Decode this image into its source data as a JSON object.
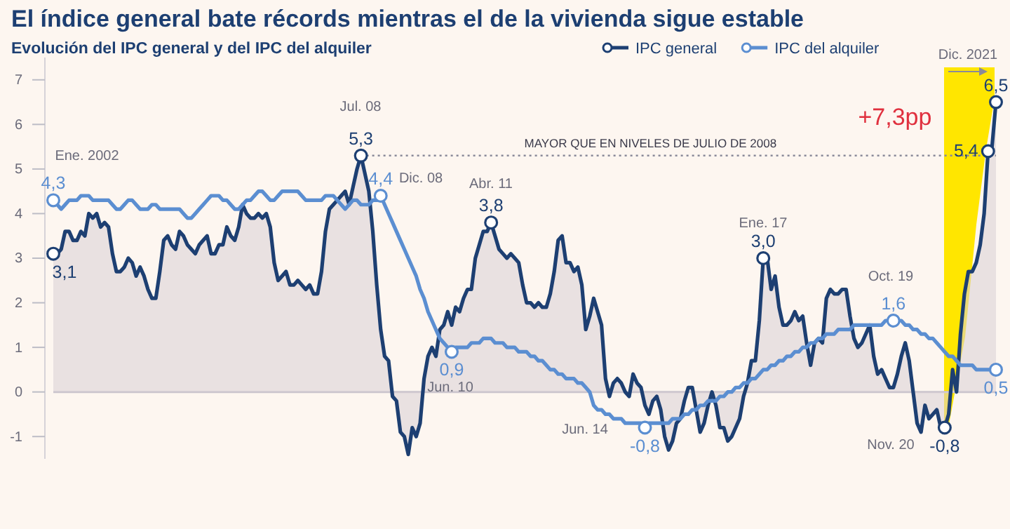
{
  "chart_data": {
    "type": "line",
    "title": "El índice general bate récords mientras el de la vivienda sigue estable",
    "subtitle": "Evolución del IPC general y del IPC del alquiler",
    "categories": [
      null,
      null,
      null,
      null,
      null,
      null,
      null,
      null,
      null,
      null,
      null,
      null,
      null,
      null,
      null,
      null,
      null,
      null,
      null,
      null,
      null,
      null,
      null,
      null,
      null,
      null,
      null,
      null,
      null,
      null,
      null,
      null,
      null,
      null,
      null,
      null,
      null,
      null,
      null,
      null,
      null,
      null,
      null,
      null,
      null,
      null,
      null,
      null,
      null,
      null,
      null,
      null,
      null,
      null,
      null,
      null,
      null,
      null,
      null,
      null,
      null,
      null,
      null,
      null,
      null,
      null,
      null,
      null,
      null,
      null,
      null,
      null,
      null,
      null,
      null,
      null,
      null,
      null,
      null,
      null,
      null,
      null,
      null,
      null,
      null,
      null,
      null,
      null,
      null,
      null,
      null,
      null,
      null,
      null,
      null,
      null,
      null,
      null,
      null,
      null,
      null,
      null,
      null,
      null,
      null,
      null,
      null,
      null,
      null,
      null,
      null,
      null,
      null,
      null,
      null,
      null,
      null,
      null,
      null,
      null,
      null,
      null,
      null,
      null,
      null,
      null,
      null,
      null,
      null,
      null,
      null,
      null,
      null,
      null,
      null,
      null,
      null,
      null,
      null,
      null,
      null,
      null,
      null,
      null,
      null,
      null,
      null,
      null,
      null,
      null,
      null,
      null,
      null,
      null,
      null,
      null,
      null,
      null,
      null,
      null,
      null,
      null,
      null,
      null,
      null,
      null,
      null,
      null,
      null,
      null,
      null,
      null,
      null,
      null,
      null,
      null,
      null,
      null,
      null,
      null,
      null,
      null,
      null,
      null,
      null,
      null,
      null,
      null,
      null,
      null,
      null,
      null,
      null,
      null,
      null,
      null,
      null,
      null,
      null,
      null,
      null,
      null,
      null,
      null,
      null,
      null,
      null,
      null,
      null,
      null,
      null,
      null,
      null,
      null,
      null,
      null,
      null,
      null,
      null,
      null,
      null,
      null,
      null,
      null,
      null,
      null,
      null,
      null,
      null,
      null,
      null,
      null,
      null,
      null,
      null,
      null,
      null,
      null,
      null,
      null
    ],
    "ylim": [
      -1.5,
      7.5
    ],
    "yticks": [
      -1,
      0,
      1,
      2,
      3,
      4,
      5,
      6,
      7
    ],
    "tick_labels": "y",
    "legend": "top right",
    "series": [
      {
        "name": "IPC general",
        "type": "area",
        "color": "#1d3f72",
        "values": [
          3.1,
          3.1,
          3.2,
          3.6,
          3.6,
          3.4,
          3.4,
          3.6,
          3.5,
          4.0,
          3.9,
          4.0,
          3.7,
          3.8,
          3.7,
          3.1,
          2.7,
          2.7,
          2.8,
          3.0,
          2.9,
          2.6,
          2.8,
          2.6,
          2.3,
          2.1,
          2.1,
          2.7,
          3.4,
          3.5,
          3.3,
          3.2,
          3.6,
          3.5,
          3.3,
          3.2,
          3.1,
          3.3,
          3.4,
          3.5,
          3.1,
          3.1,
          3.3,
          3.3,
          3.7,
          3.5,
          3.4,
          3.7,
          4.2,
          4.0,
          3.9,
          3.9,
          4.0,
          3.9,
          4.0,
          3.7,
          2.9,
          2.5,
          2.6,
          2.7,
          2.4,
          2.4,
          2.5,
          2.4,
          2.3,
          2.4,
          2.2,
          2.2,
          2.7,
          3.6,
          4.1,
          4.2,
          4.3,
          4.4,
          4.5,
          4.2,
          4.6,
          5.0,
          5.3,
          4.9,
          4.5,
          3.6,
          2.4,
          1.4,
          0.8,
          0.7,
          -0.1,
          -0.2,
          -0.9,
          -1.0,
          -1.4,
          -0.8,
          -1.0,
          -0.7,
          0.3,
          0.8,
          1.0,
          0.8,
          1.4,
          1.5,
          1.8,
          1.5,
          1.9,
          1.8,
          2.1,
          2.3,
          2.3,
          3.0,
          3.3,
          3.6,
          3.6,
          3.8,
          3.5,
          3.2,
          3.1,
          3.0,
          3.1,
          3.0,
          2.9,
          2.4,
          2.0,
          2.0,
          1.9,
          2.0,
          1.9,
          1.9,
          2.2,
          2.7,
          3.4,
          3.5,
          2.9,
          2.9,
          2.7,
          2.8,
          2.4,
          1.4,
          1.7,
          2.1,
          1.8,
          1.5,
          0.3,
          -0.1,
          0.2,
          0.3,
          0.2,
          0.0,
          -0.1,
          0.4,
          0.2,
          0.1,
          -0.3,
          -0.5,
          -0.2,
          -0.1,
          -0.4,
          -1.0,
          -1.3,
          -1.1,
          -0.7,
          -0.6,
          -0.2,
          0.1,
          0.1,
          -0.4,
          -0.9,
          -0.7,
          -0.3,
          0.0,
          -0.3,
          -0.8,
          -0.8,
          -1.1,
          -1.0,
          -0.8,
          -0.6,
          -0.1,
          0.2,
          0.7,
          0.7,
          1.6,
          3.0,
          3.0,
          2.3,
          2.6,
          1.9,
          1.5,
          1.5,
          1.6,
          1.8,
          1.6,
          1.7,
          1.1,
          0.6,
          1.1,
          1.2,
          1.1,
          2.1,
          2.3,
          2.2,
          2.2,
          2.3,
          2.3,
          1.7,
          1.2,
          1.0,
          1.1,
          1.3,
          1.5,
          0.8,
          0.4,
          0.5,
          0.3,
          0.1,
          0.1,
          0.4,
          0.8,
          1.1,
          0.7,
          0.0,
          -0.7,
          -0.9,
          -0.3,
          -0.6,
          -0.5,
          -0.4,
          -0.8,
          -0.8,
          -0.5,
          0.5,
          0.0,
          1.3,
          2.2,
          2.7,
          2.7,
          2.9,
          3.3,
          4.0,
          5.4,
          5.5,
          6.5
        ],
        "value_labels": [
          "3,1",
          null,
          null,
          null,
          null,
          null,
          null,
          null,
          null,
          null,
          null,
          null,
          null,
          null,
          null,
          null,
          null,
          null,
          null,
          null,
          null,
          null,
          null,
          null,
          null,
          null,
          null,
          null,
          null,
          null,
          null,
          null,
          null,
          null,
          null,
          null,
          null,
          null,
          null,
          null,
          null,
          null,
          null,
          null,
          null,
          null,
          null,
          null,
          null,
          null,
          null,
          null,
          null,
          null,
          null,
          null,
          null,
          null,
          null,
          null,
          null,
          null,
          null,
          null,
          null,
          null,
          null,
          null,
          null,
          null,
          null,
          null,
          null,
          null,
          null,
          null,
          null,
          null,
          "5,3",
          null,
          null,
          null,
          null,
          null,
          null,
          null,
          null,
          null,
          null,
          null,
          null,
          null,
          null,
          null,
          null,
          null,
          null,
          null,
          null,
          null,
          null,
          null,
          null,
          null,
          null,
          null,
          null,
          null,
          null,
          null,
          null,
          "3,8",
          null,
          null,
          null,
          null,
          null,
          null,
          null,
          null,
          null,
          null,
          null,
          null,
          null,
          null,
          null,
          null,
          null,
          null,
          null,
          null,
          null,
          null,
          null,
          null,
          null,
          null,
          null,
          null,
          null,
          null,
          null,
          null,
          null,
          null,
          null,
          null,
          null,
          null,
          null,
          null,
          null,
          null,
          null,
          null,
          null,
          null,
          null,
          null,
          null,
          null,
          null,
          null,
          null,
          null,
          null,
          null,
          null,
          null,
          null,
          null,
          null,
          null,
          null,
          null,
          null,
          null,
          null,
          null,
          "3,0",
          null,
          null,
          null,
          null,
          null,
          null,
          null,
          null,
          null,
          null,
          null,
          null,
          null,
          null,
          null,
          null,
          null,
          null,
          null,
          null,
          null,
          null,
          null,
          null,
          null,
          null,
          null,
          null,
          null,
          null,
          null,
          null,
          null,
          null,
          null,
          null,
          null,
          null,
          null,
          null,
          null,
          null,
          null,
          null,
          null,
          "-0,8",
          null,
          null,
          null,
          null,
          null,
          null,
          null,
          null,
          null,
          null,
          "5,4",
          null,
          "6,5"
        ]
      },
      {
        "name": "IPC del alquiler",
        "color": "#5b8ed1",
        "values": [
          4.3,
          4.2,
          4.1,
          4.2,
          4.3,
          4.3,
          4.3,
          4.4,
          4.4,
          4.4,
          4.3,
          4.3,
          4.3,
          4.3,
          4.3,
          4.2,
          4.1,
          4.1,
          4.2,
          4.3,
          4.3,
          4.2,
          4.1,
          4.1,
          4.1,
          4.2,
          4.2,
          4.1,
          4.1,
          4.1,
          4.1,
          4.1,
          4.1,
          4.0,
          3.9,
          3.9,
          4.0,
          4.1,
          4.2,
          4.3,
          4.4,
          4.4,
          4.4,
          4.3,
          4.3,
          4.2,
          4.1,
          4.1,
          4.2,
          4.3,
          4.3,
          4.4,
          4.5,
          4.5,
          4.4,
          4.3,
          4.3,
          4.4,
          4.5,
          4.5,
          4.5,
          4.5,
          4.5,
          4.4,
          4.3,
          4.3,
          4.3,
          4.3,
          4.3,
          4.4,
          4.4,
          4.4,
          4.3,
          4.2,
          4.1,
          4.2,
          4.3,
          4.3,
          4.2,
          4.2,
          4.2,
          4.3,
          4.3,
          4.4,
          4.2,
          4.0,
          3.8,
          3.6,
          3.4,
          3.2,
          3.0,
          2.8,
          2.6,
          2.3,
          2.1,
          1.8,
          1.6,
          1.4,
          1.2,
          1.1,
          1.0,
          0.9,
          1.0,
          1.0,
          1.0,
          1.0,
          1.1,
          1.1,
          1.1,
          1.2,
          1.2,
          1.2,
          1.1,
          1.1,
          1.1,
          1.0,
          1.0,
          1.0,
          0.9,
          0.9,
          0.9,
          0.8,
          0.8,
          0.7,
          0.7,
          0.6,
          0.5,
          0.5,
          0.4,
          0.4,
          0.3,
          0.3,
          0.3,
          0.2,
          0.2,
          0.1,
          0.0,
          -0.3,
          -0.4,
          -0.4,
          -0.5,
          -0.5,
          -0.6,
          -0.6,
          -0.6,
          -0.7,
          -0.7,
          -0.7,
          -0.7,
          -0.7,
          -0.8,
          -0.7,
          -0.7,
          -0.7,
          -0.7,
          -0.7,
          -0.7,
          -0.6,
          -0.6,
          -0.6,
          -0.5,
          -0.5,
          -0.4,
          -0.4,
          -0.3,
          -0.3,
          -0.2,
          -0.2,
          -0.2,
          -0.1,
          -0.1,
          0.0,
          0.0,
          0.1,
          0.1,
          0.2,
          0.2,
          0.3,
          0.3,
          0.4,
          0.5,
          0.5,
          0.6,
          0.6,
          0.7,
          0.7,
          0.8,
          0.8,
          0.9,
          0.9,
          1.0,
          1.0,
          1.1,
          1.1,
          1.2,
          1.2,
          1.3,
          1.3,
          1.3,
          1.4,
          1.4,
          1.4,
          1.4,
          1.5,
          1.5,
          1.5,
          1.5,
          1.5,
          1.5,
          1.5,
          1.5,
          1.6,
          1.6,
          1.6,
          1.6,
          1.6,
          1.5,
          1.5,
          1.4,
          1.4,
          1.3,
          1.3,
          1.2,
          1.2,
          1.1,
          1.0,
          0.9,
          0.8,
          0.8,
          0.7,
          0.6,
          0.6,
          0.6,
          0.6,
          0.5,
          0.5,
          0.5,
          0.5,
          0.5,
          0.5
        ],
        "value_labels": [
          "4,3",
          null,
          null,
          null,
          null,
          null,
          null,
          null,
          null,
          null,
          null,
          null,
          null,
          null,
          null,
          null,
          null,
          null,
          null,
          null,
          null,
          null,
          null,
          null,
          null,
          null,
          null,
          null,
          null,
          null,
          null,
          null,
          null,
          null,
          null,
          null,
          null,
          null,
          null,
          null,
          null,
          null,
          null,
          null,
          null,
          null,
          null,
          null,
          null,
          null,
          null,
          null,
          null,
          null,
          null,
          null,
          null,
          null,
          null,
          null,
          null,
          null,
          null,
          null,
          null,
          null,
          null,
          null,
          null,
          null,
          null,
          null,
          null,
          null,
          null,
          null,
          null,
          null,
          null,
          null,
          null,
          null,
          null,
          "4,4",
          null,
          null,
          null,
          null,
          null,
          null,
          null,
          null,
          null,
          null,
          null,
          null,
          null,
          null,
          null,
          null,
          null,
          "0,9",
          null,
          null,
          null,
          null,
          null,
          null,
          null,
          null,
          null,
          null,
          null,
          null,
          null,
          null,
          null,
          null,
          null,
          null,
          null,
          null,
          null,
          null,
          null,
          null,
          null,
          null,
          null,
          null,
          null,
          null,
          null,
          null,
          null,
          null,
          null,
          null,
          null,
          null,
          null,
          null,
          null,
          null,
          null,
          null,
          null,
          null,
          null,
          null,
          "-0,8",
          null,
          null,
          null,
          null,
          null,
          null,
          null,
          null,
          null,
          null,
          null,
          null,
          null,
          null,
          null,
          null,
          null,
          null,
          null,
          null,
          null,
          null,
          null,
          null,
          null,
          null,
          null,
          null,
          null,
          null,
          null,
          null,
          null,
          null,
          null,
          null,
          null,
          null,
          null,
          null,
          null,
          null,
          null,
          null,
          null,
          null,
          null,
          null,
          null,
          null,
          null,
          null,
          null,
          null,
          null,
          null,
          null,
          null,
          null,
          null,
          null,
          null,
          "1,6",
          null,
          null,
          null,
          null,
          null,
          null,
          null,
          null,
          null,
          null,
          null,
          null,
          null,
          null,
          null,
          null,
          null,
          null,
          null,
          null,
          null,
          null,
          null,
          null,
          null,
          "0,5"
        ]
      }
    ],
    "ref_lines": [
      {
        "axis": "y",
        "value": 5.3,
        "label": "MAYOR QUE EN NIVELES DE JULIO DE 2008",
        "line_style": "dotted",
        "color": "#8a8a99"
      }
    ],
    "annotations": [
      "Ene. 2002",
      "Jul. 08",
      "Dic. 08",
      "Abr. 11",
      "Jun. 10",
      "Jun. 14",
      "Ene. 17",
      "Oct. 19",
      "Nov. 20",
      "Dic. 2021",
      "+7,3pp"
    ]
  }
}
